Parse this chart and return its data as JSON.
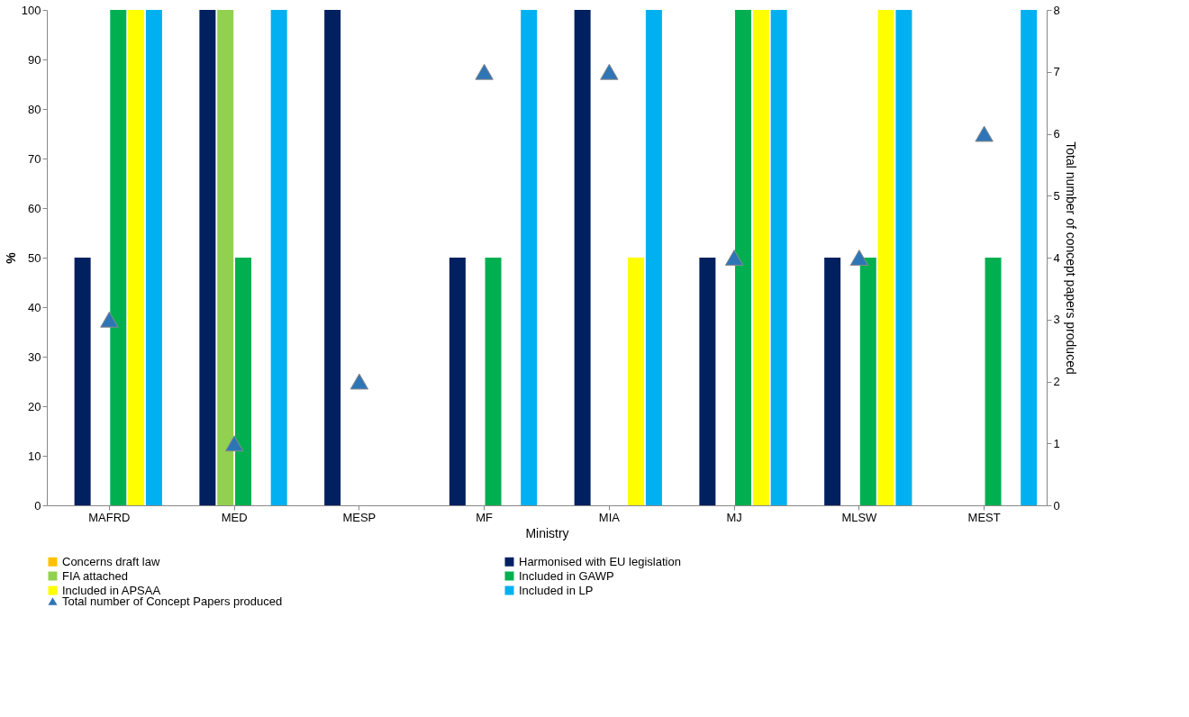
{
  "chart_data": {
    "type": "bar",
    "xlabel": "Ministry",
    "ylabel": "%",
    "y2label": "Total number of concept papers produced",
    "categories": [
      "MAFRD",
      "MED",
      "MESP",
      "MF",
      "MIA",
      "MJ",
      "MLSW",
      "MEST"
    ],
    "series": [
      {
        "name": "Concerns draft law",
        "color": "#ffc000",
        "values": [
          0,
          0,
          0,
          0,
          0,
          0,
          0,
          0
        ]
      },
      {
        "name": "Harmonised with EU legislation",
        "color": "#002060",
        "values": [
          50,
          100,
          100,
          50,
          100,
          50,
          50,
          0
        ]
      },
      {
        "name": "FIA attached",
        "color": "#92d050",
        "values": [
          0,
          100,
          0,
          0,
          0,
          0,
          0,
          0
        ]
      },
      {
        "name": "Included in GAWP",
        "color": "#00b050",
        "values": [
          100,
          50,
          0,
          50,
          0,
          100,
          50,
          50
        ]
      },
      {
        "name": "Included in APSAA",
        "color": "#ffff00",
        "values": [
          100,
          0,
          0,
          0,
          50,
          100,
          100,
          0
        ]
      },
      {
        "name": "Included in LP",
        "color": "#00b0f0",
        "values": [
          100,
          100,
          0,
          100,
          100,
          100,
          100,
          100
        ]
      },
      {
        "name": "Total number of Concept Papers produced",
        "color": "#2e75b6",
        "type": "scatter",
        "axis": "y2",
        "marker": "triangle",
        "values": [
          3,
          1,
          2,
          7,
          7,
          4,
          4,
          6
        ]
      }
    ],
    "ylim": [
      0,
      100
    ],
    "yticks": [
      0,
      10,
      20,
      30,
      40,
      50,
      60,
      70,
      80,
      90,
      100
    ],
    "y2lim": [
      0,
      8
    ],
    "y2ticks": [
      0,
      1,
      2,
      3,
      4,
      5,
      6,
      7,
      8
    ],
    "grid": false,
    "legend": "bottom"
  }
}
